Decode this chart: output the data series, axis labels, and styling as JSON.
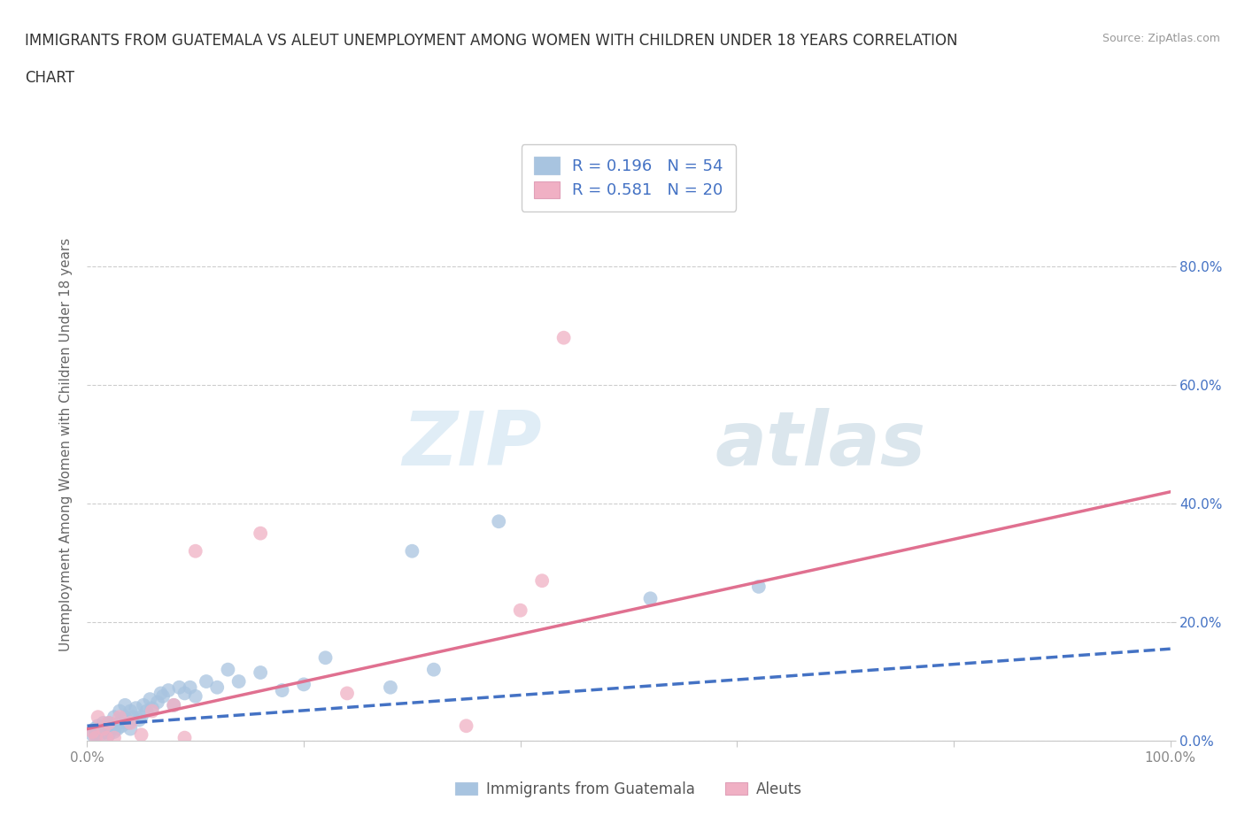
{
  "title_line1": "IMMIGRANTS FROM GUATEMALA VS ALEUT UNEMPLOYMENT AMONG WOMEN WITH CHILDREN UNDER 18 YEARS CORRELATION",
  "title_line2": "CHART",
  "source": "Source: ZipAtlas.com",
  "ylabel_label": "Unemployment Among Women with Children Under 18 years",
  "xlim": [
    0,
    1.0
  ],
  "ylim": [
    0,
    1.0
  ],
  "xticks": [
    0.0,
    0.2,
    0.4,
    0.6,
    0.8,
    1.0
  ],
  "yticks": [
    0.0,
    0.2,
    0.4,
    0.6,
    0.8
  ],
  "xtick_labels": [
    "0.0%",
    "",
    "",
    "",
    "",
    "100.0%"
  ],
  "ytick_labels_right": [
    "0.0%",
    "20.0%",
    "40.0%",
    "60.0%",
    "80.0%"
  ],
  "blue_R": "0.196",
  "blue_N": "54",
  "pink_R": "0.581",
  "pink_N": "20",
  "blue_color": "#a8c4e0",
  "pink_color": "#f0b0c4",
  "blue_line_color": "#4472c4",
  "pink_line_color": "#e07090",
  "watermark_zip": "ZIP",
  "watermark_atlas": "atlas",
  "blue_scatter_x": [
    0.005,
    0.007,
    0.008,
    0.01,
    0.01,
    0.012,
    0.015,
    0.015,
    0.018,
    0.02,
    0.02,
    0.022,
    0.025,
    0.025,
    0.028,
    0.03,
    0.03,
    0.032,
    0.035,
    0.035,
    0.038,
    0.04,
    0.04,
    0.042,
    0.045,
    0.048,
    0.05,
    0.052,
    0.055,
    0.058,
    0.06,
    0.065,
    0.068,
    0.07,
    0.075,
    0.08,
    0.085,
    0.09,
    0.095,
    0.1,
    0.11,
    0.12,
    0.13,
    0.14,
    0.16,
    0.18,
    0.2,
    0.22,
    0.28,
    0.3,
    0.32,
    0.38,
    0.52,
    0.62
  ],
  "blue_scatter_y": [
    0.01,
    0.02,
    0.01,
    0.015,
    0.025,
    0.01,
    0.02,
    0.03,
    0.015,
    0.01,
    0.03,
    0.02,
    0.015,
    0.04,
    0.02,
    0.03,
    0.05,
    0.025,
    0.04,
    0.06,
    0.03,
    0.02,
    0.05,
    0.04,
    0.055,
    0.035,
    0.04,
    0.06,
    0.05,
    0.07,
    0.055,
    0.065,
    0.08,
    0.075,
    0.085,
    0.06,
    0.09,
    0.08,
    0.09,
    0.075,
    0.1,
    0.09,
    0.12,
    0.1,
    0.115,
    0.085,
    0.095,
    0.14,
    0.09,
    0.32,
    0.12,
    0.37,
    0.24,
    0.26
  ],
  "pink_scatter_x": [
    0.005,
    0.008,
    0.01,
    0.015,
    0.018,
    0.02,
    0.025,
    0.03,
    0.04,
    0.05,
    0.06,
    0.08,
    0.09,
    0.1,
    0.16,
    0.24,
    0.35,
    0.4,
    0.42,
    0.44
  ],
  "pink_scatter_y": [
    0.015,
    0.005,
    0.04,
    0.02,
    0.005,
    0.03,
    0.005,
    0.04,
    0.03,
    0.01,
    0.05,
    0.06,
    0.005,
    0.32,
    0.35,
    0.08,
    0.025,
    0.22,
    0.27,
    0.68
  ],
  "blue_trend_x0": 0.0,
  "blue_trend_x1": 1.0,
  "blue_trend_y0": 0.025,
  "blue_trend_y1": 0.155,
  "pink_trend_x0": 0.0,
  "pink_trend_x1": 1.0,
  "pink_trend_y0": 0.02,
  "pink_trend_y1": 0.42,
  "legend_label_blue": "Immigrants from Guatemala",
  "legend_label_pink": "Aleuts",
  "background_color": "#ffffff",
  "grid_color": "#c8c8c8",
  "tick_color": "#888888",
  "ylabel_color": "#666666",
  "right_tick_color": "#4472c4",
  "title_color": "#333333"
}
